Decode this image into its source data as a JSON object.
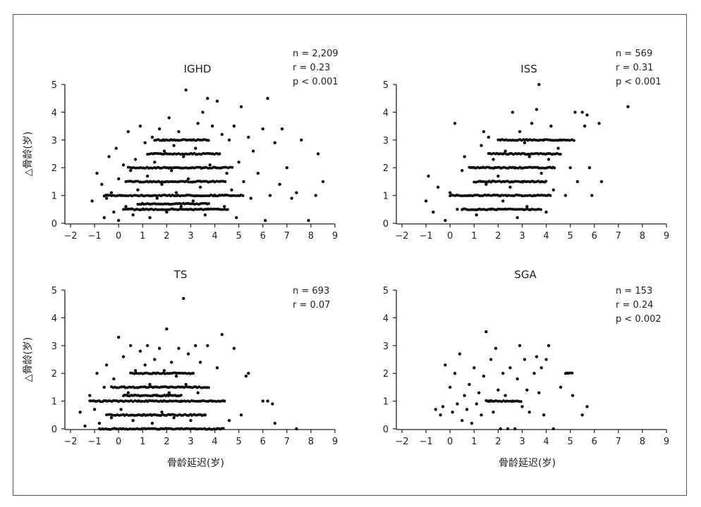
{
  "chart_data": [
    {
      "type": "scatter",
      "title": "IGHD",
      "xlabel": "",
      "ylabel": "△骨龄(岁)",
      "xlim": [
        -2,
        9
      ],
      "ylim": [
        0,
        5
      ],
      "xticks": [
        "−2",
        "−1",
        "0",
        "1",
        "2",
        "3",
        "4",
        "5",
        "6",
        "7",
        "8",
        "9"
      ],
      "yticks": [
        "0",
        "1",
        "2",
        "3",
        "4",
        "5"
      ],
      "stats": [
        "n = 2,209",
        "r = 0.23",
        "p < 0.001"
      ],
      "points": [
        [
          -1.1,
          0.8
        ],
        [
          -0.9,
          1.8
        ],
        [
          -0.7,
          1.4
        ],
        [
          -0.6,
          0.2
        ],
        [
          -0.5,
          0.9
        ],
        [
          -0.4,
          2.4
        ],
        [
          -0.3,
          1.1
        ],
        [
          -0.2,
          0.4
        ],
        [
          -0.1,
          2.7
        ],
        [
          0,
          1.6
        ],
        [
          0,
          0.1
        ],
        [
          0.1,
          1.0
        ],
        [
          0.2,
          2.1
        ],
        [
          0.3,
          0.6
        ],
        [
          0.4,
          3.3
        ],
        [
          0.5,
          1.9
        ],
        [
          0.6,
          0.3
        ],
        [
          0.7,
          2.3
        ],
        [
          0.8,
          1.2
        ],
        [
          0.9,
          3.5
        ],
        [
          1,
          0.5
        ],
        [
          1.1,
          2.9
        ],
        [
          1.2,
          1.7
        ],
        [
          1.3,
          0.2
        ],
        [
          1.4,
          3.1
        ],
        [
          1.5,
          2.2
        ],
        [
          1.6,
          0.9
        ],
        [
          1.7,
          3.4
        ],
        [
          1.8,
          1.4
        ],
        [
          1.9,
          2.6
        ],
        [
          2,
          0.4
        ],
        [
          2.1,
          3.8
        ],
        [
          2.2,
          1.9
        ],
        [
          2.3,
          2.8
        ],
        [
          2.4,
          1.1
        ],
        [
          2.5,
          3.3
        ],
        [
          2.6,
          0.6
        ],
        [
          2.7,
          2.4
        ],
        [
          2.8,
          4.8
        ],
        [
          2.9,
          1.6
        ],
        [
          3,
          3.0
        ],
        [
          3.1,
          0.8
        ],
        [
          3.2,
          2.7
        ],
        [
          3.3,
          3.6
        ],
        [
          3.4,
          1.3
        ],
        [
          3.5,
          4.0
        ],
        [
          3.6,
          0.3
        ],
        [
          3.7,
          4.5
        ],
        [
          3.8,
          2.1
        ],
        [
          3.9,
          3.5
        ],
        [
          4,
          1.0
        ],
        [
          4.1,
          4.4
        ],
        [
          4.2,
          2.5
        ],
        [
          4.3,
          3.2
        ],
        [
          4.4,
          0.6
        ],
        [
          4.5,
          1.8
        ],
        [
          4.6,
          3.0
        ],
        [
          4.7,
          1.2
        ],
        [
          4.8,
          3.5
        ],
        [
          4.9,
          0.2
        ],
        [
          5,
          2.2
        ],
        [
          5.1,
          4.2
        ],
        [
          5.2,
          1.5
        ],
        [
          5.4,
          3.1
        ],
        [
          5.5,
          0.9
        ],
        [
          5.6,
          2.6
        ],
        [
          5.8,
          1.8
        ],
        [
          6,
          3.4
        ],
        [
          6.1,
          0.1
        ],
        [
          6.2,
          4.5
        ],
        [
          6.3,
          1.0
        ],
        [
          6.5,
          2.9
        ],
        [
          6.7,
          1.4
        ],
        [
          6.8,
          3.4
        ],
        [
          7,
          2.0
        ],
        [
          7.2,
          0.9
        ],
        [
          7.4,
          1.1
        ],
        [
          7.6,
          3.0
        ],
        [
          7.9,
          0.1
        ],
        [
          8.2,
          1.0
        ],
        [
          8.3,
          2.5
        ],
        [
          8.5,
          1.5
        ]
      ],
      "rows": [
        {
          "y": 2.0,
          "x": [
            0.4,
            4.8
          ]
        },
        {
          "y": 1.5,
          "x": [
            0.3,
            4.5
          ]
        },
        {
          "y": 1.0,
          "x": [
            -0.6,
            5.2
          ]
        },
        {
          "y": 0.5,
          "x": [
            0.2,
            4.6
          ]
        },
        {
          "y": 0.7,
          "x": [
            0.8,
            3.8
          ]
        },
        {
          "y": 3.0,
          "x": [
            1.5,
            3.8
          ]
        },
        {
          "y": 2.5,
          "x": [
            1.2,
            4.2
          ]
        }
      ]
    },
    {
      "type": "scatter",
      "title": "ISS",
      "xlabel": "",
      "ylabel": "",
      "xlim": [
        -2,
        9
      ],
      "ylim": [
        0,
        5
      ],
      "xticks": [
        "−2",
        "−1",
        "0",
        "1",
        "2",
        "3",
        "4",
        "5",
        "6",
        "7",
        "8",
        "9"
      ],
      "yticks": [
        "0",
        "1",
        "2",
        "3",
        "4",
        "5"
      ],
      "stats": [
        "n = 569",
        "r = 0.31",
        "p < 0.001"
      ],
      "points": [
        [
          -1,
          0.8
        ],
        [
          -0.9,
          1.7
        ],
        [
          -0.7,
          0.4
        ],
        [
          -0.5,
          1.3
        ],
        [
          -0.2,
          0.1
        ],
        [
          0,
          1.1
        ],
        [
          0.2,
          3.6
        ],
        [
          0.3,
          0.5
        ],
        [
          0.5,
          1.9
        ],
        [
          0.6,
          2.4
        ],
        [
          0.8,
          1.0
        ],
        [
          1,
          2.0
        ],
        [
          1.1,
          0.3
        ],
        [
          1.3,
          2.8
        ],
        [
          1.4,
          3.3
        ],
        [
          1.5,
          1.4
        ],
        [
          1.6,
          3.1
        ],
        [
          1.7,
          0.5
        ],
        [
          1.8,
          2.3
        ],
        [
          2,
          1.7
        ],
        [
          2.1,
          3.0
        ],
        [
          2.2,
          0.8
        ],
        [
          2.3,
          2.6
        ],
        [
          2.5,
          1.3
        ],
        [
          2.6,
          4.0
        ],
        [
          2.7,
          2.0
        ],
        [
          2.8,
          0.2
        ],
        [
          2.9,
          3.3
        ],
        [
          3,
          1.5
        ],
        [
          3.1,
          2.9
        ],
        [
          3.2,
          0.6
        ],
        [
          3.3,
          2.4
        ],
        [
          3.4,
          3.6
        ],
        [
          3.5,
          1.0
        ],
        [
          3.6,
          4.1
        ],
        [
          3.7,
          5.0
        ],
        [
          3.8,
          1.8
        ],
        [
          3.9,
          3.0
        ],
        [
          4,
          0.4
        ],
        [
          4.1,
          2.3
        ],
        [
          4.2,
          3.5
        ],
        [
          4.3,
          1.2
        ],
        [
          4.5,
          2.7
        ],
        [
          4.6,
          3.0
        ],
        [
          4.8,
          1.0
        ],
        [
          5,
          2.0
        ],
        [
          5.2,
          4.0
        ],
        [
          5.3,
          1.5
        ],
        [
          5.5,
          4.0
        ],
        [
          5.6,
          3.5
        ],
        [
          5.8,
          2.0
        ],
        [
          5.9,
          1.0
        ],
        [
          6.2,
          3.6
        ],
        [
          6.3,
          1.5
        ],
        [
          7.4,
          4.2
        ],
        [
          5.7,
          3.9
        ]
      ],
      "rows": [
        {
          "y": 2.0,
          "x": [
            0.8,
            4.4
          ]
        },
        {
          "y": 1.5,
          "x": [
            1.0,
            4.0
          ]
        },
        {
          "y": 1.0,
          "x": [
            0.0,
            4.2
          ]
        },
        {
          "y": 0.5,
          "x": [
            0.5,
            3.8
          ]
        },
        {
          "y": 3.0,
          "x": [
            2.0,
            5.2
          ]
        },
        {
          "y": 2.5,
          "x": [
            1.6,
            4.6
          ]
        }
      ]
    },
    {
      "type": "scatter",
      "title": "TS",
      "xlabel": "骨龄延迟(岁)",
      "ylabel": "△骨龄(岁)",
      "xlim": [
        -2,
        9
      ],
      "ylim": [
        0,
        5
      ],
      "xticks": [
        "−2",
        "−1",
        "0",
        "1",
        "2",
        "3",
        "4",
        "5",
        "6",
        "7",
        "8",
        "9"
      ],
      "yticks": [
        "0",
        "1",
        "2",
        "3",
        "4",
        "5"
      ],
      "stats": [
        "n = 693",
        "r = 0.07"
      ],
      "points": [
        [
          -1.6,
          0.6
        ],
        [
          -1.4,
          0.1
        ],
        [
          -1.2,
          1.2
        ],
        [
          -1,
          0.7
        ],
        [
          -0.9,
          2.0
        ],
        [
          -0.8,
          0.2
        ],
        [
          -0.6,
          1.5
        ],
        [
          -0.5,
          2.3
        ],
        [
          -0.3,
          0.4
        ],
        [
          -0.2,
          1.8
        ],
        [
          0,
          3.3
        ],
        [
          0.1,
          0.7
        ],
        [
          0.2,
          2.6
        ],
        [
          0.4,
          1.3
        ],
        [
          0.5,
          3.0
        ],
        [
          0.6,
          0.3
        ],
        [
          0.7,
          2.1
        ],
        [
          0.8,
          1.0
        ],
        [
          0.9,
          2.8
        ],
        [
          1,
          0.5
        ],
        [
          1.1,
          2.3
        ],
        [
          1.2,
          3.0
        ],
        [
          1.3,
          1.6
        ],
        [
          1.4,
          0.2
        ],
        [
          1.5,
          2.5
        ],
        [
          1.6,
          1.2
        ],
        [
          1.7,
          2.9
        ],
        [
          1.8,
          0.6
        ],
        [
          1.9,
          2.1
        ],
        [
          2,
          3.6
        ],
        [
          2.1,
          1.3
        ],
        [
          2.2,
          2.4
        ],
        [
          2.3,
          0.4
        ],
        [
          2.4,
          1.9
        ],
        [
          2.5,
          2.9
        ],
        [
          2.6,
          1.0
        ],
        [
          2.7,
          4.7
        ],
        [
          2.8,
          1.6
        ],
        [
          2.9,
          2.7
        ],
        [
          3,
          0.3
        ],
        [
          3.1,
          2.0
        ],
        [
          3.2,
          3.0
        ],
        [
          3.3,
          1.3
        ],
        [
          3.4,
          2.4
        ],
        [
          3.6,
          0.5
        ],
        [
          3.7,
          3.0
        ],
        [
          3.9,
          1.0
        ],
        [
          4.1,
          2.2
        ],
        [
          4.3,
          3.4
        ],
        [
          4.4,
          1.0
        ],
        [
          4.6,
          0.3
        ],
        [
          4.8,
          2.9
        ],
        [
          5.1,
          0.5
        ],
        [
          5.3,
          1.9
        ],
        [
          5.4,
          2.0
        ],
        [
          6,
          1.0
        ],
        [
          6.2,
          1.0
        ],
        [
          6.4,
          0.9
        ],
        [
          6.5,
          0.2
        ],
        [
          7.4,
          0.0
        ]
      ],
      "rows": [
        {
          "y": 1.5,
          "x": [
            -0.3,
            3.8
          ]
        },
        {
          "y": 1.0,
          "x": [
            -1.2,
            4.4
          ]
        },
        {
          "y": 0.5,
          "x": [
            -0.5,
            3.6
          ]
        },
        {
          "y": 2.0,
          "x": [
            0.5,
            3.1
          ]
        },
        {
          "y": 0.0,
          "x": [
            -0.8,
            4.4
          ]
        },
        {
          "y": 1.2,
          "x": [
            0.2,
            2.6
          ]
        }
      ]
    },
    {
      "type": "scatter",
      "title": "SGA",
      "xlabel": "骨龄延迟(岁)",
      "ylabel": "",
      "xlim": [
        -2,
        9
      ],
      "ylim": [
        0,
        5
      ],
      "xticks": [
        "−2",
        "−1",
        "0",
        "1",
        "2",
        "3",
        "4",
        "5",
        "6",
        "7",
        "8",
        "9"
      ],
      "yticks": [
        "0",
        "1",
        "2",
        "3",
        "4",
        "5"
      ],
      "stats": [
        "n = 153",
        "r = 0.24",
        "p < 0.002"
      ],
      "points": [
        [
          -0.6,
          0.7
        ],
        [
          -0.4,
          0.5
        ],
        [
          -0.3,
          0.8
        ],
        [
          -0.2,
          2.3
        ],
        [
          0,
          1.5
        ],
        [
          0.1,
          0.6
        ],
        [
          0.2,
          2.0
        ],
        [
          0.3,
          0.9
        ],
        [
          0.4,
          2.7
        ],
        [
          0.5,
          0.3
        ],
        [
          0.6,
          1.2
        ],
        [
          0.7,
          0.7
        ],
        [
          0.8,
          1.6
        ],
        [
          0.9,
          0.2
        ],
        [
          1,
          2.2
        ],
        [
          1.1,
          0.9
        ],
        [
          1.2,
          1.3
        ],
        [
          1.3,
          0.5
        ],
        [
          1.4,
          1.9
        ],
        [
          1.5,
          3.5
        ],
        [
          1.6,
          1.0
        ],
        [
          1.7,
          2.5
        ],
        [
          1.8,
          0.6
        ],
        [
          1.9,
          2.9
        ],
        [
          2,
          1.4
        ],
        [
          2.1,
          0.0
        ],
        [
          2.2,
          2.0
        ],
        [
          2.3,
          1.2
        ],
        [
          2.4,
          0.0
        ],
        [
          2.5,
          2.2
        ],
        [
          2.6,
          1.0
        ],
        [
          2.7,
          0.0
        ],
        [
          2.8,
          1.8
        ],
        [
          2.9,
          3.0
        ],
        [
          3,
          0.8
        ],
        [
          3.1,
          2.5
        ],
        [
          3.2,
          1.4
        ],
        [
          3.3,
          0.6
        ],
        [
          3.5,
          2.0
        ],
        [
          3.6,
          2.6
        ],
        [
          3.7,
          1.3
        ],
        [
          3.8,
          2.2
        ],
        [
          3.9,
          0.5
        ],
        [
          4,
          2.5
        ],
        [
          4.1,
          3.0
        ],
        [
          4.3,
          0.0
        ],
        [
          4.6,
          1.5
        ],
        [
          4.9,
          2.0
        ],
        [
          5.1,
          1.2
        ],
        [
          5.5,
          0.5
        ],
        [
          5.7,
          0.8
        ]
      ],
      "rows": [
        {
          "y": 1.0,
          "x": [
            1.5,
            3.0
          ]
        },
        {
          "y": 2.0,
          "x": [
            4.8,
            5.1
          ]
        }
      ]
    }
  ]
}
